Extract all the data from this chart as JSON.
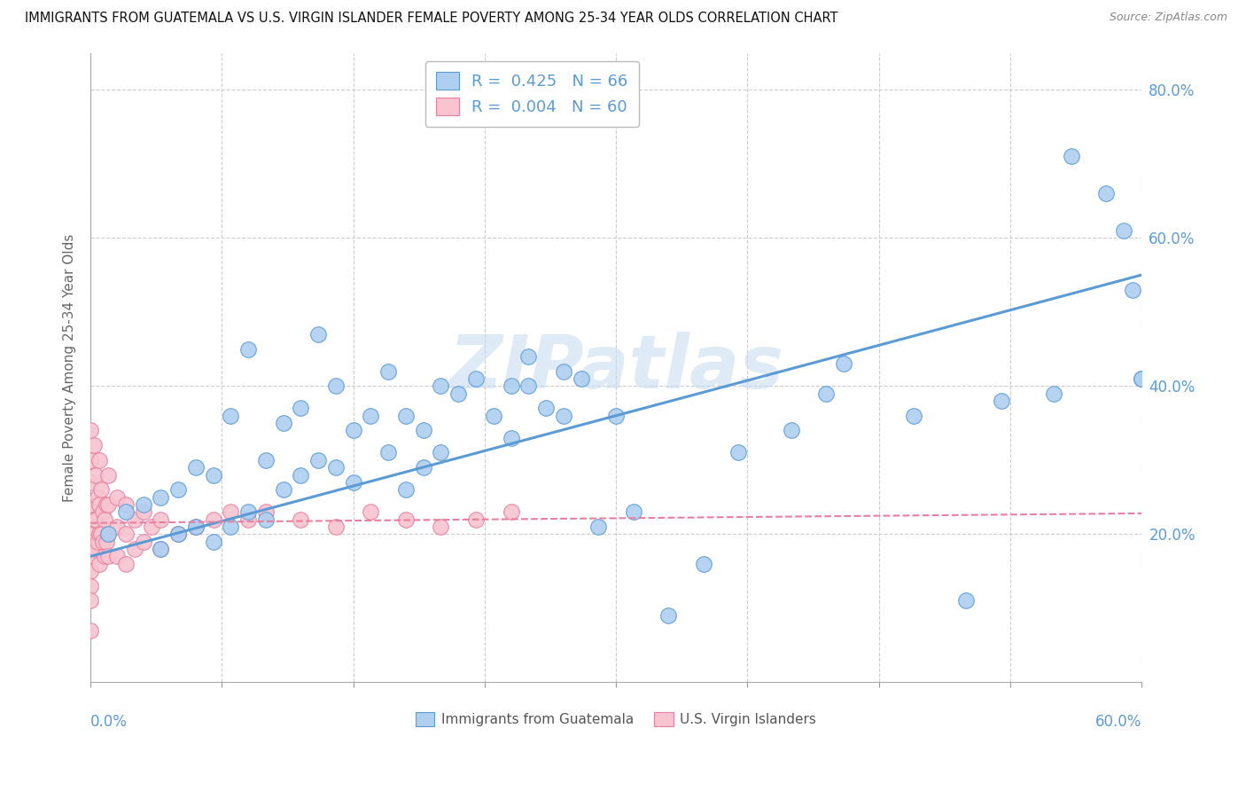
{
  "title": "IMMIGRANTS FROM GUATEMALA VS U.S. VIRGIN ISLANDER FEMALE POVERTY AMONG 25-34 YEAR OLDS CORRELATION CHART",
  "source": "Source: ZipAtlas.com",
  "ylabel": "Female Poverty Among 25-34 Year Olds",
  "x_min": 0.0,
  "x_max": 0.6,
  "y_min": 0.0,
  "y_max": 0.85,
  "legend_r1": "R =  0.425",
  "legend_n1": "N = 66",
  "legend_r2": "R =  0.004",
  "legend_n2": "N = 60",
  "color_blue_fill": "#AECFF0",
  "color_blue_edge": "#5B9BD5",
  "color_pink_fill": "#F7C4D0",
  "color_pink_edge": "#E87FA0",
  "color_blue_line": "#5B9BD5",
  "color_pink_line": "#E87FA0",
  "color_grid": "#CCCCCC",
  "watermark_color": "#C8DCF0",
  "watermark": "ZIPatlas",
  "blue_x": [
    0.01,
    0.02,
    0.03,
    0.04,
    0.04,
    0.05,
    0.05,
    0.06,
    0.06,
    0.07,
    0.07,
    0.08,
    0.08,
    0.09,
    0.09,
    0.1,
    0.1,
    0.11,
    0.11,
    0.12,
    0.12,
    0.13,
    0.13,
    0.14,
    0.14,
    0.15,
    0.15,
    0.16,
    0.17,
    0.17,
    0.18,
    0.18,
    0.19,
    0.19,
    0.2,
    0.2,
    0.21,
    0.22,
    0.23,
    0.24,
    0.24,
    0.25,
    0.25,
    0.26,
    0.27,
    0.27,
    0.28,
    0.29,
    0.3,
    0.31,
    0.33,
    0.35,
    0.37,
    0.4,
    0.42,
    0.43,
    0.47,
    0.5,
    0.52,
    0.55,
    0.56,
    0.58,
    0.59,
    0.595,
    0.6,
    0.6
  ],
  "blue_y": [
    0.2,
    0.23,
    0.24,
    0.18,
    0.25,
    0.2,
    0.26,
    0.21,
    0.29,
    0.19,
    0.28,
    0.21,
    0.36,
    0.23,
    0.45,
    0.22,
    0.3,
    0.26,
    0.35,
    0.28,
    0.37,
    0.3,
    0.47,
    0.29,
    0.4,
    0.27,
    0.34,
    0.36,
    0.31,
    0.42,
    0.26,
    0.36,
    0.29,
    0.34,
    0.31,
    0.4,
    0.39,
    0.41,
    0.36,
    0.33,
    0.4,
    0.4,
    0.44,
    0.37,
    0.36,
    0.42,
    0.41,
    0.21,
    0.36,
    0.23,
    0.09,
    0.16,
    0.31,
    0.34,
    0.39,
    0.43,
    0.36,
    0.11,
    0.38,
    0.39,
    0.71,
    0.66,
    0.61,
    0.53,
    0.41,
    0.41
  ],
  "pink_x": [
    0.0,
    0.0,
    0.0,
    0.0,
    0.0,
    0.0,
    0.0,
    0.0,
    0.0,
    0.0,
    0.0,
    0.002,
    0.002,
    0.003,
    0.003,
    0.003,
    0.004,
    0.004,
    0.005,
    0.005,
    0.005,
    0.005,
    0.006,
    0.006,
    0.007,
    0.007,
    0.008,
    0.008,
    0.009,
    0.009,
    0.01,
    0.01,
    0.01,
    0.01,
    0.015,
    0.015,
    0.015,
    0.02,
    0.02,
    0.02,
    0.025,
    0.025,
    0.03,
    0.03,
    0.035,
    0.04,
    0.04,
    0.05,
    0.06,
    0.07,
    0.08,
    0.09,
    0.1,
    0.12,
    0.14,
    0.16,
    0.18,
    0.2,
    0.22,
    0.24
  ],
  "pink_y": [
    0.34,
    0.3,
    0.27,
    0.24,
    0.21,
    0.19,
    0.17,
    0.15,
    0.13,
    0.11,
    0.07,
    0.32,
    0.22,
    0.28,
    0.22,
    0.18,
    0.25,
    0.19,
    0.3,
    0.24,
    0.2,
    0.16,
    0.26,
    0.2,
    0.23,
    0.19,
    0.22,
    0.17,
    0.24,
    0.19,
    0.28,
    0.24,
    0.2,
    0.17,
    0.25,
    0.21,
    0.17,
    0.24,
    0.2,
    0.16,
    0.22,
    0.18,
    0.23,
    0.19,
    0.21,
    0.22,
    0.18,
    0.2,
    0.21,
    0.22,
    0.23,
    0.22,
    0.23,
    0.22,
    0.21,
    0.23,
    0.22,
    0.21,
    0.22,
    0.23
  ],
  "blue_line_x": [
    0.0,
    0.6
  ],
  "blue_line_y": [
    0.17,
    0.55
  ],
  "pink_line_x": [
    0.0,
    0.6
  ],
  "pink_line_y": [
    0.215,
    0.228
  ]
}
